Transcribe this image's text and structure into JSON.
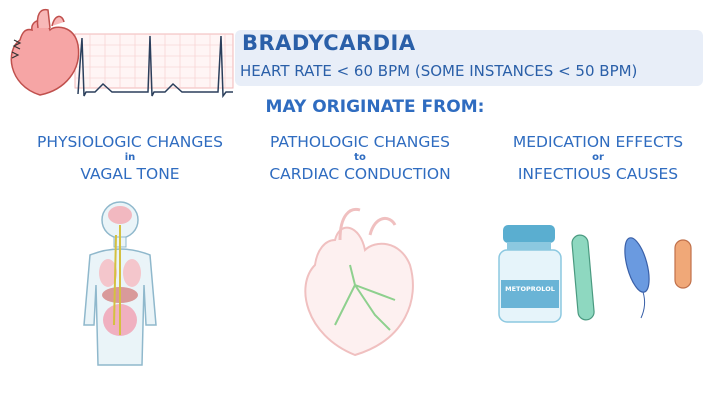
{
  "header": {
    "title": "BRADYCARDIA",
    "subtitle": "HEART RATE < 60 BPM (SOME INSTANCES < 50 BPM)"
  },
  "section_heading": "MAY ORIGINATE FROM:",
  "columns": [
    {
      "line1": "PHYSIOLOGIC CHANGES",
      "connector": "in",
      "line2": "VAGAL TONE",
      "illustration": "human-body-vagus-nerve"
    },
    {
      "line1": "PATHOLOGIC CHANGES",
      "connector": "to",
      "line2": "CARDIAC CONDUCTION",
      "illustration": "heart-conduction-system"
    },
    {
      "line1": "MEDICATION EFFECTS",
      "connector": "or",
      "line2": "INFECTIOUS CAUSES",
      "illustration": "medication-vial-and-bacteria"
    }
  ],
  "vial_label": "METOPROLOL",
  "colors": {
    "text": "#2f6cc0",
    "band": "#e8eef8",
    "ecg_grid": "#f2b8b8",
    "ecg_line": "#2b3f5c",
    "heart": "#f4a0a0"
  }
}
